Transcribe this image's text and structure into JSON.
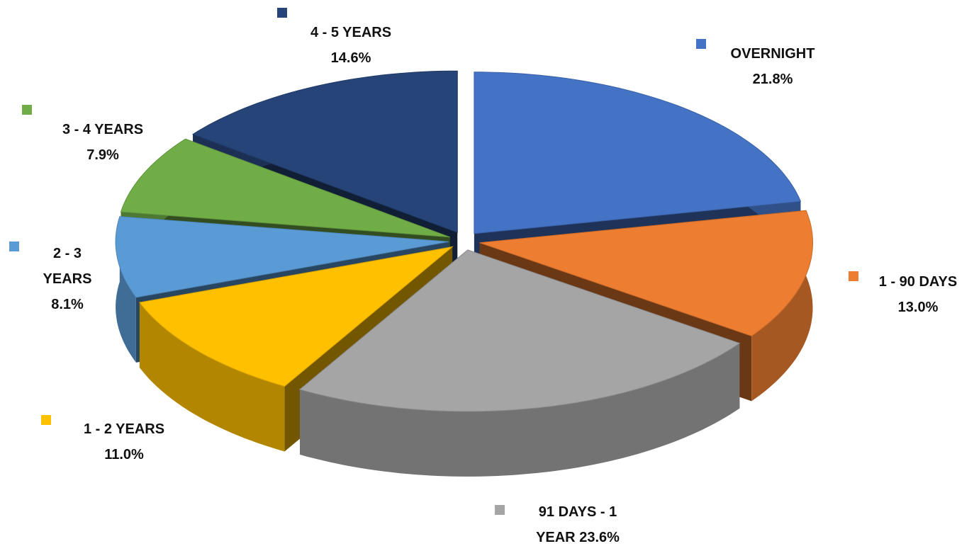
{
  "chart_data": {
    "type": "pie3d",
    "categories": [
      "OVERNIGHT",
      "1 - 90 DAYS",
      "91 DAYS - 1 YEAR",
      "1 - 2 YEARS",
      "2 - 3 YEARS",
      "3 - 4 YEARS",
      "4 - 5 YEARS"
    ],
    "values": [
      21.8,
      13.0,
      23.6,
      11.0,
      8.1,
      7.9,
      14.6
    ],
    "value_labels": [
      "21.8%",
      "13.0%",
      "23.6%",
      "11.0%",
      "8.1%",
      "7.9%",
      "14.6%"
    ],
    "colors": [
      "#4472c4",
      "#ed7d31",
      "#a5a5a5",
      "#ffc000",
      "#5b9bd5",
      "#70ad47",
      "#264478"
    ]
  }
}
